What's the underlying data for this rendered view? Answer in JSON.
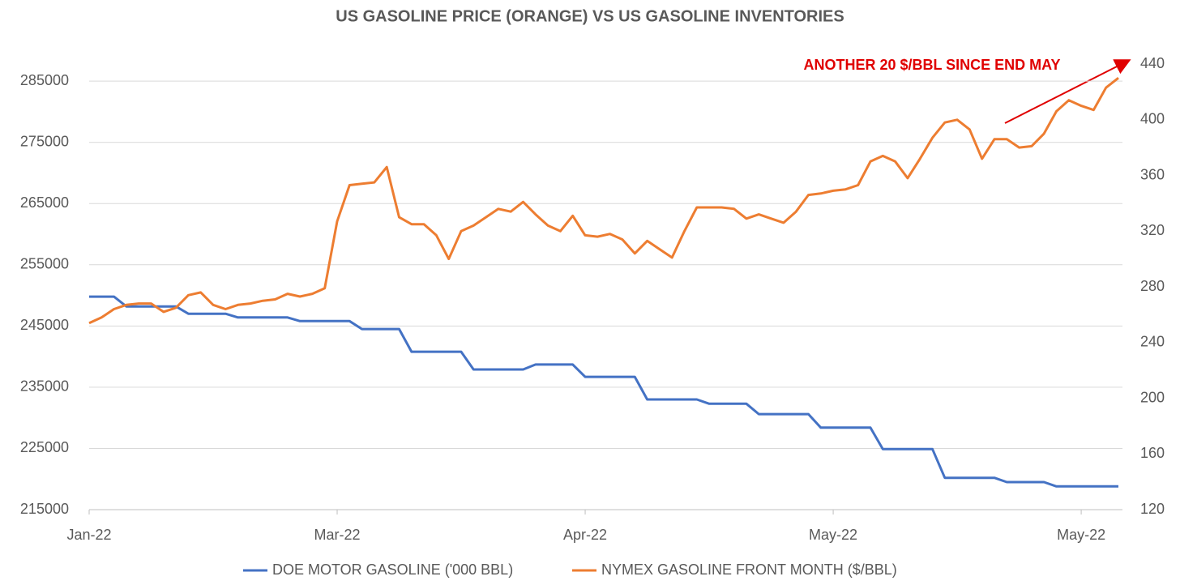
{
  "chart_data": {
    "type": "line",
    "title": "US GASOLINE PRICE (ORANGE) VS US GASOLINE INVENTORIES",
    "annotation": "ANOTHER 20 $/BBL SINCE END MAY",
    "categories": [
      "Jan-22",
      null,
      null,
      null,
      null,
      null,
      null,
      null,
      null,
      null,
      null,
      null,
      null,
      null,
      null,
      null,
      null,
      null,
      null,
      null,
      "Mar-22",
      null,
      null,
      null,
      null,
      null,
      null,
      null,
      null,
      null,
      null,
      null,
      null,
      null,
      null,
      null,
      null,
      null,
      null,
      null,
      "Apr-22",
      null,
      null,
      null,
      null,
      null,
      null,
      null,
      null,
      null,
      null,
      null,
      null,
      null,
      null,
      null,
      null,
      null,
      null,
      null,
      "May-22",
      null,
      null,
      null,
      null,
      null,
      null,
      null,
      null,
      null,
      null,
      null,
      null,
      null,
      null,
      null,
      null,
      null,
      null,
      null,
      "May-22",
      null,
      null,
      null
    ],
    "series": [
      {
        "name": "DOE MOTOR GASOLINE ('000 BBL)",
        "color": "#4472c4",
        "axis": "y",
        "values": [
          249800,
          249800,
          249800,
          248200,
          248200,
          248200,
          248200,
          248200,
          247000,
          247000,
          247000,
          247000,
          246400,
          246400,
          246400,
          246400,
          246400,
          245800,
          245800,
          245800,
          245800,
          245800,
          244500,
          244500,
          244500,
          244500,
          240800,
          240800,
          240800,
          240800,
          240800,
          237900,
          237900,
          237900,
          237900,
          237900,
          238700,
          238700,
          238700,
          238700,
          236700,
          236700,
          236700,
          236700,
          236700,
          233000,
          233000,
          233000,
          233000,
          233000,
          232300,
          232300,
          232300,
          232300,
          230600,
          230600,
          230600,
          230600,
          230600,
          228400,
          228400,
          228400,
          228400,
          228400,
          224900,
          224900,
          224900,
          224900,
          224900,
          220200,
          220200,
          220200,
          220200,
          220200,
          219500,
          219500,
          219500,
          219500,
          218800,
          218800,
          218800,
          218800,
          218800,
          218800
        ]
      },
      {
        "name": "NYMEX GASOLINE FRONT MONTH ($/BBL)",
        "color": "#ed7d31",
        "axis": "y2",
        "values": [
          254,
          258,
          264,
          267,
          268,
          268,
          262,
          265,
          274,
          276,
          267,
          264,
          267,
          268,
          270,
          271,
          275,
          273,
          275,
          279,
          327,
          353,
          354,
          355,
          366,
          330,
          325,
          325,
          317,
          300,
          320,
          324,
          330,
          336,
          334,
          341,
          332,
          324,
          320,
          331,
          317,
          316,
          318,
          314,
          304,
          313,
          307,
          301,
          320,
          337,
          337,
          337,
          336,
          329,
          332,
          329,
          326,
          334,
          346,
          347,
          349,
          350,
          353,
          370,
          374,
          370,
          358,
          372,
          387,
          398,
          400,
          393,
          372,
          386,
          386,
          380,
          381,
          390,
          406,
          414,
          410,
          407,
          423,
          430
        ]
      }
    ],
    "ylim": [
      215000,
      287800
    ],
    "yticks": [
      215000,
      225000,
      235000,
      245000,
      255000,
      265000,
      275000,
      285000
    ],
    "y2lim": [
      120,
      440
    ],
    "y2ticks": [
      120,
      160,
      200,
      240,
      280,
      320,
      360,
      400,
      440
    ],
    "grid": true,
    "legend": "bottom"
  }
}
